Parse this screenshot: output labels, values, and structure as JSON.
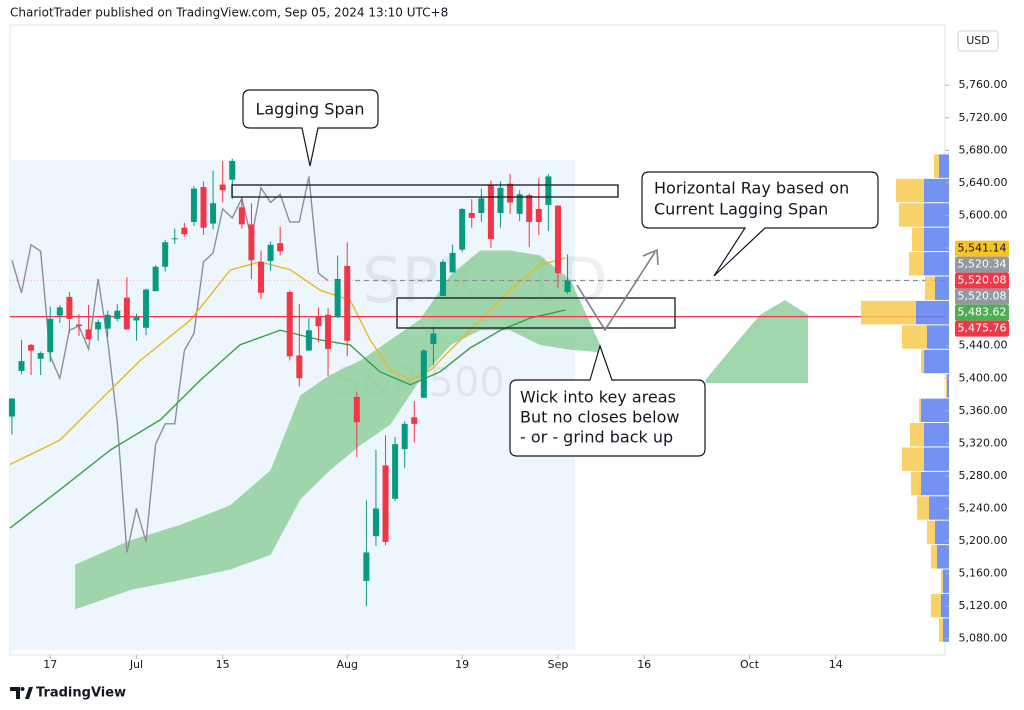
{
  "header": {
    "publisher": "ChariotTrader published on TradingView.com, Sep 05, 2024 13:10 UTC+8",
    "brand": "TradingView"
  },
  "chart_data": {
    "type": "candlestick",
    "watermark": [
      "SPX, 1D",
      "S&P 500"
    ],
    "currency": "USD",
    "xlim": [
      -4.2,
      93.4
    ],
    "ylim": [
      5060,
      5834
    ],
    "xticks": [
      {
        "value": 0,
        "label": "17"
      },
      {
        "value": 9,
        "label": "Jul"
      },
      {
        "value": 18,
        "label": "15"
      },
      {
        "value": 31,
        "label": "Aug"
      },
      {
        "value": 43,
        "label": "19"
      },
      {
        "value": 53,
        "label": "Sep"
      },
      {
        "value": 62,
        "label": "16"
      },
      {
        "value": 73,
        "label": "Oct"
      },
      {
        "value": 82,
        "label": "14"
      }
    ],
    "yticks": [
      {
        "value": 5760,
        "label": "5,760.00"
      },
      {
        "value": 5720,
        "label": "5,720.00"
      },
      {
        "value": 5680,
        "label": "5,680.00"
      },
      {
        "value": 5640,
        "label": "5,640.00"
      },
      {
        "value": 5600,
        "label": "5,600.00"
      },
      {
        "value": 5560,
        "label": "5,560.00"
      },
      {
        "value": 5440,
        "label": "5,440.00"
      },
      {
        "value": 5400,
        "label": "5,400.00"
      },
      {
        "value": 5360,
        "label": "5,360.00"
      },
      {
        "value": 5320,
        "label": "5,320.00"
      },
      {
        "value": 5280,
        "label": "5,280.00"
      },
      {
        "value": 5240,
        "label": "5,240.00"
      },
      {
        "value": 5200,
        "label": "5,200.00"
      },
      {
        "value": 5160,
        "label": "5,160.00"
      },
      {
        "value": 5120,
        "label": "5,120.00"
      },
      {
        "value": 5080,
        "label": "5,080.00"
      }
    ],
    "up_color": "#089981",
    "down_color": "#f23645",
    "candles": {
      "x": [
        -4,
        -3,
        -2,
        -1,
        0,
        1,
        2,
        3,
        4,
        5,
        6,
        7,
        8,
        9,
        10,
        11,
        12,
        13,
        14,
        15,
        16,
        17,
        18,
        19,
        20,
        21,
        22,
        23,
        24,
        25,
        26,
        27,
        28,
        29,
        30,
        31,
        32,
        33,
        34,
        35,
        36,
        37,
        38,
        39,
        40,
        41,
        42,
        43,
        44,
        45,
        46,
        47,
        48,
        49,
        50,
        51,
        52,
        53,
        54
      ],
      "open": [
        5353,
        5409,
        5441,
        5424,
        5432,
        5477,
        5500,
        5466,
        5460,
        5460,
        5461,
        5473,
        5499,
        5471,
        5462,
        5507,
        5537,
        5572,
        5585,
        5592,
        5635,
        5590,
        5638,
        5644,
        5610,
        5589,
        5543,
        5544,
        5566,
        5506,
        5428,
        5434,
        5476,
        5478,
        5475,
        5538,
        5377,
        5151,
        5206,
        5293,
        5252,
        5313,
        5352,
        5376,
        5442,
        5501,
        5530,
        5558,
        5603,
        5603,
        5637,
        5603,
        5639,
        5602,
        5625,
        5608,
        5613,
        5612,
        5506
      ],
      "high": [
        5376,
        5447,
        5442,
        5433,
        5488,
        5490,
        5506,
        5479,
        5490,
        5472,
        5483,
        5491,
        5524,
        5479,
        5510,
        5539,
        5570,
        5584,
        5591,
        5636,
        5642,
        5655,
        5667,
        5670,
        5622,
        5615,
        5557,
        5568,
        5586,
        5508,
        5491,
        5474,
        5487,
        5486,
        5551,
        5567,
        5383,
        5250,
        5312,
        5330,
        5328,
        5347,
        5372,
        5436,
        5463,
        5546,
        5564,
        5609,
        5620,
        5633,
        5643,
        5642,
        5651,
        5631,
        5627,
        5646,
        5651,
        5613,
        5552
      ],
      "low": [
        5331,
        5405,
        5404,
        5404,
        5420,
        5468,
        5455,
        5452,
        5447,
        5446,
        5451,
        5470,
        5460,
        5446,
        5453,
        5507,
        5531,
        5565,
        5574,
        5587,
        5576,
        5583,
        5616,
        5620,
        5584,
        5522,
        5497,
        5532,
        5551,
        5422,
        5390,
        5434,
        5444,
        5403,
        5474,
        5427,
        5303,
        5120,
        5194,
        5195,
        5249,
        5290,
        5321,
        5376,
        5416,
        5501,
        5530,
        5555,
        5585,
        5592,
        5560,
        5585,
        5602,
        5593,
        5561,
        5576,
        5581,
        5511,
        5504
      ],
      "close": [
        5375,
        5421,
        5434,
        5431,
        5473,
        5487,
        5473,
        5464,
        5448,
        5469,
        5478,
        5483,
        5460,
        5475,
        5509,
        5537,
        5567,
        5572,
        5577,
        5633,
        5585,
        5615,
        5631,
        5667,
        5589,
        5545,
        5505,
        5564,
        5556,
        5427,
        5400,
        5459,
        5464,
        5436,
        5522,
        5446,
        5346,
        5186,
        5240,
        5199,
        5319,
        5344,
        5344,
        5434,
        5455,
        5543,
        5554,
        5608,
        5597,
        5621,
        5571,
        5634,
        5616,
        5626,
        5592,
        5592,
        5648,
        5529,
        5520
      ]
    },
    "cloud": {
      "color": "#8fcf9c",
      "x": [
        2.6,
        8.4,
        13.6,
        18.8,
        23.0,
        26.1,
        29.2,
        32.4,
        35.5,
        38.6,
        41.8,
        44.9,
        48.0,
        51.1,
        54.3,
        57.4,
        62.6,
        68.4,
        71.0,
        74.1,
        76.7,
        79.1
      ],
      "upper": [
        5171,
        5201,
        5220,
        5244,
        5287,
        5379,
        5404,
        5422,
        5447,
        5472,
        5527,
        5557,
        5557,
        5551,
        5521,
        5441,
        null,
        5398,
        5435,
        5478,
        5496,
        5478
      ],
      "lower": [
        5116,
        5140,
        5152,
        5165,
        5183,
        5251,
        5287,
        5318,
        5343,
        5398,
        5441,
        5459,
        5459,
        5441,
        5435,
        5432,
        null,
        5394,
        5394,
        5394,
        5394,
        5394
      ]
    },
    "lines": [
      {
        "color": "#8a8f99",
        "x": [
          -4,
          -3,
          -2,
          -1,
          0,
          1,
          2,
          3,
          4,
          5,
          6,
          7,
          8,
          9,
          10,
          11,
          12,
          13,
          14,
          15,
          16,
          17,
          18,
          19,
          20,
          21,
          22,
          23,
          24,
          25,
          26,
          27,
          28,
          29
        ],
        "values": [
          5545,
          5505,
          5564,
          5556,
          5427,
          5400,
          5459,
          5464,
          5436,
          5522,
          5446,
          5346,
          5186,
          5240,
          5199,
          5319,
          5344,
          5344,
          5434,
          5455,
          5543,
          5554,
          5608,
          5597,
          5621,
          5571,
          5634,
          5616,
          5626,
          5592,
          5592,
          5648,
          5529,
          5520
        ]
      },
      {
        "color": "#e9b824",
        "x": [
          -4.2,
          1.0,
          5.2,
          9.4,
          14.6,
          18.8,
          21.9,
          25.1,
          28.2,
          31.3,
          33.4,
          35.5,
          37.6,
          39.7,
          41.8,
          44.9,
          48.0,
          51.1,
          53.8
        ],
        "values": [
          5294,
          5324,
          5373,
          5422,
          5471,
          5533,
          5543,
          5533,
          5508,
          5496,
          5447,
          5410,
          5398,
          5410,
          5435,
          5471,
          5508,
          5539,
          5548
        ]
      },
      {
        "color": "#3a9f4d",
        "x": [
          -4.2,
          1.0,
          6.3,
          11.5,
          15.7,
          19.8,
          24.0,
          28.2,
          31.3,
          34.4,
          37.6,
          40.7,
          43.8,
          47.0,
          50.1,
          53.8
        ],
        "values": [
          5216,
          5263,
          5312,
          5349,
          5398,
          5441,
          5459,
          5447,
          5441,
          5408,
          5392,
          5408,
          5437,
          5459,
          5474,
          5484
        ]
      }
    ],
    "volume_profile": {
      "down_color": "#f7c94f",
      "up_color": "#5b7ff0",
      "levels": [
        5660,
        5630,
        5600,
        5570,
        5540,
        5510,
        5480,
        5450,
        5420,
        5390,
        5360,
        5330,
        5300,
        5270,
        5240,
        5210,
        5180,
        5150,
        5120,
        5090
      ],
      "down": [
        5,
        28,
        25,
        12,
        15,
        10,
        55,
        25,
        3,
        1,
        2,
        14,
        22,
        10,
        12,
        8,
        6,
        2,
        10,
        4
      ],
      "up": [
        10,
        25,
        25,
        25,
        25,
        14,
        33,
        22,
        25,
        2,
        28,
        25,
        25,
        28,
        20,
        14,
        12,
        6,
        8,
        6
      ]
    },
    "price_labels": [
      {
        "value": 5541.14,
        "label": "5,541.14",
        "color": "#f7c325",
        "text_color": "#131722"
      },
      {
        "value": 5520.34,
        "label": "5,520.34",
        "color": "#9598a1",
        "text_color": "#ffffff"
      },
      {
        "value": 5520.08,
        "label": "5,520.08",
        "color": "#f23645",
        "text_color": "#ffffff"
      },
      {
        "value": 5520.08,
        "label": "5,520.08",
        "color": "#9598a1",
        "text_color": "#ffffff",
        "line": "dashed"
      },
      {
        "value": 5483.62,
        "label": "5,483.62",
        "color": "#4caf50",
        "text_color": "#ffffff"
      },
      {
        "value": 5475.76,
        "label": "5,475.76",
        "color": "#f23645",
        "text_color": "#ffffff",
        "line": "solid"
      }
    ],
    "annotations": {
      "lagging": "Lagging Span",
      "ray": [
        "Horizontal Ray based on",
        "Current Lagging Span"
      ],
      "wick": [
        "Wick into key areas",
        "But no closes below",
        "- or - grind back up"
      ]
    }
  }
}
